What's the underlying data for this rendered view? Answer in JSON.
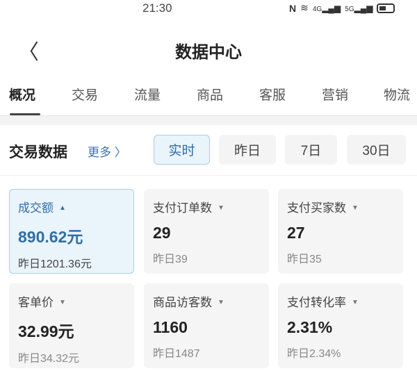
{
  "status_bar": {
    "time": "21:30",
    "icons": [
      "nfc-icon",
      "wifi-icon",
      "signal-4g-icon",
      "signal-5g-icon",
      "battery-icon"
    ],
    "net1": "4G",
    "net2": "5G"
  },
  "header": {
    "title": "数据中心",
    "back_icon": "chevron-left-icon"
  },
  "tabs": [
    {
      "label": "概况",
      "active": true
    },
    {
      "label": "交易"
    },
    {
      "label": "流量"
    },
    {
      "label": "商品"
    },
    {
      "label": "客服"
    },
    {
      "label": "营销"
    },
    {
      "label": "物流"
    }
  ],
  "section": {
    "title": "交易数据",
    "more": "更多 〉"
  },
  "periods": [
    {
      "label": "实时",
      "active": true
    },
    {
      "label": "昨日"
    },
    {
      "label": "7日"
    },
    {
      "label": "30日"
    }
  ],
  "metrics": [
    {
      "label": "成交额",
      "caret": "▲",
      "value": "890.62元",
      "prev": "昨日1201.36元",
      "active": true
    },
    {
      "label": "支付订单数",
      "caret": "▼",
      "value": "29",
      "prev": "昨日39"
    },
    {
      "label": "支付买家数",
      "caret": "▼",
      "value": "27",
      "prev": "昨日35"
    },
    {
      "label": "客单价",
      "caret": "▼",
      "value": "32.99元",
      "prev": "昨日34.32元"
    },
    {
      "label": "商品访客数",
      "caret": "▼",
      "value": "1160",
      "prev": "昨日1487"
    },
    {
      "label": "支付转化率",
      "caret": "▼",
      "value": "2.31%",
      "prev": "昨日2.34%"
    }
  ],
  "colors": {
    "accent": "#2f6ea8",
    "active_bg": "#eaf4fb",
    "card_bg": "#f5f5f5"
  }
}
